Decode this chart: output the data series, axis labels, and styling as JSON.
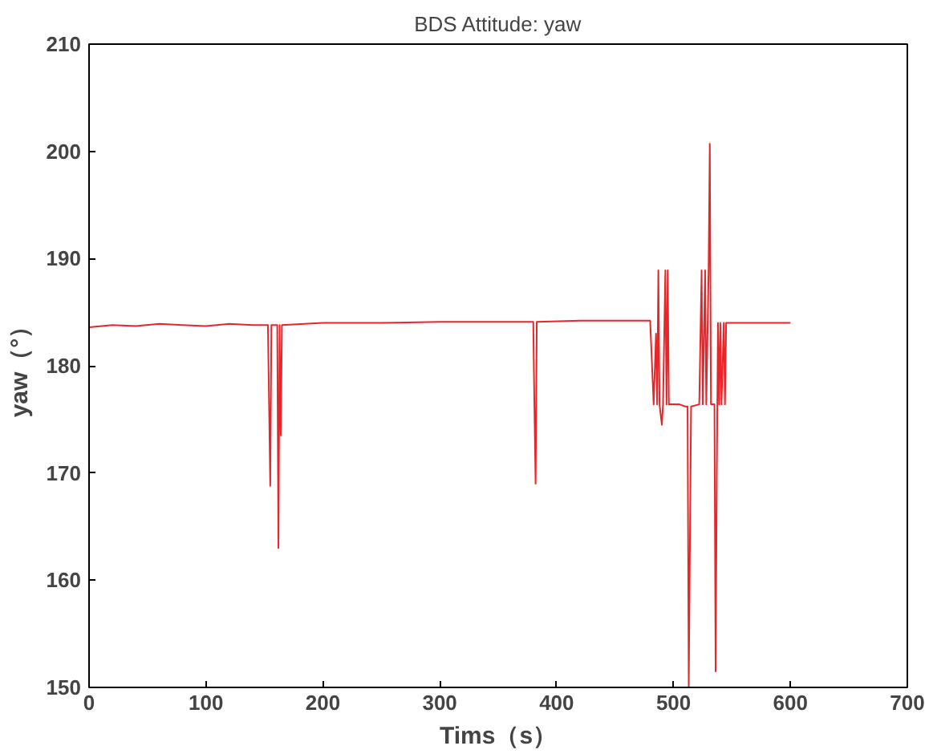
{
  "chart_data": {
    "type": "line",
    "title": "BDS Attitude: yaw",
    "xlabel": "Tims（s）",
    "ylabel": "yaw（°）",
    "xlim": [
      0,
      700
    ],
    "ylim": [
      150,
      210
    ],
    "xticks": [
      0,
      100,
      200,
      300,
      400,
      500,
      600,
      700
    ],
    "yticks": [
      150,
      160,
      170,
      180,
      190,
      200,
      210
    ],
    "grid": false,
    "series": [
      {
        "color": "#e8262a",
        "x": [
          0,
          20,
          40,
          60,
          80,
          100,
          120,
          140,
          153,
          154,
          155,
          156,
          161,
          162,
          163,
          164,
          165,
          200,
          250,
          300,
          350,
          380,
          381,
          382,
          383,
          420,
          460,
          480,
          483,
          485,
          486,
          487,
          488,
          490,
          491,
          493,
          494,
          495,
          496,
          505,
          510,
          512,
          513,
          514,
          515,
          522,
          524,
          525,
          527,
          528,
          530,
          531,
          532,
          535,
          536,
          537,
          538,
          539,
          540,
          541,
          543,
          544,
          545,
          560,
          580,
          600
        ],
        "values": [
          183.6,
          183.8,
          183.7,
          183.9,
          183.8,
          183.7,
          183.9,
          183.8,
          183.8,
          176.5,
          168.8,
          183.8,
          183.8,
          163.0,
          183.8,
          173.5,
          183.8,
          184.0,
          184.0,
          184.1,
          184.1,
          184.1,
          176.0,
          169.0,
          184.1,
          184.2,
          184.2,
          184.2,
          176.4,
          183.0,
          176.4,
          188.9,
          176.4,
          174.5,
          176.4,
          188.9,
          176.4,
          188.9,
          176.4,
          176.4,
          176.2,
          176.2,
          150.0,
          163.3,
          176.2,
          176.4,
          188.9,
          176.4,
          188.9,
          176.4,
          188.9,
          200.7,
          176.4,
          176.4,
          151.5,
          170.0,
          184.0,
          176.4,
          184.0,
          176.4,
          184.0,
          176.4,
          184.0,
          184.0,
          184.0,
          184.0
        ]
      }
    ]
  }
}
